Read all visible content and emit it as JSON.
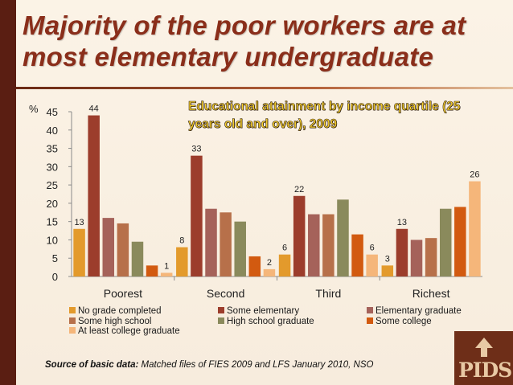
{
  "slide": {
    "title": "Majority of the poor workers are at most elementary undergraduate",
    "source_label": "Source of basic data:",
    "source_text": "Matched files of FIES 2009 and LFS  January 2010, NSO",
    "logo_text": "PIDS"
  },
  "chart_data": {
    "type": "bar",
    "title": "Educational attainment by income quartile (25 years old and over),  2009",
    "ylabel": "%",
    "ylim": [
      0,
      45
    ],
    "yticks": [
      0,
      5,
      10,
      15,
      20,
      25,
      30,
      35,
      40,
      45
    ],
    "categories": [
      "Poorest",
      "Second",
      "Third",
      "Richest"
    ],
    "series": [
      {
        "name": "No grade completed",
        "color": "#e39a2c",
        "values": [
          13,
          8,
          6,
          3
        ],
        "labels": [
          "13",
          "8",
          "6",
          "3"
        ]
      },
      {
        "name": "Some elementary",
        "color": "#9c3d2c",
        "values": [
          44,
          33,
          22,
          13
        ],
        "labels": [
          "44",
          "33",
          "22",
          "13"
        ]
      },
      {
        "name": "Elementary graduate",
        "color": "#a5625a",
        "values": [
          16,
          18.5,
          17,
          10
        ],
        "labels": [
          "",
          "",
          "",
          ""
        ]
      },
      {
        "name": "Some high school",
        "color": "#b7704a",
        "values": [
          14.5,
          17.5,
          17,
          10.5
        ],
        "labels": [
          "",
          "",
          "",
          ""
        ]
      },
      {
        "name": "High school graduate",
        "color": "#8a8a5c",
        "values": [
          9.5,
          15,
          21,
          18.5
        ],
        "labels": [
          "",
          "",
          "",
          ""
        ]
      },
      {
        "name": "Some college",
        "color": "#d25a10",
        "values": [
          3,
          5.5,
          11.5,
          19
        ],
        "labels": [
          "",
          "",
          "",
          ""
        ]
      },
      {
        "name": "At least college graduate",
        "color": "#f5b67a",
        "values": [
          1,
          2,
          6,
          26
        ],
        "labels": [
          "1",
          "2",
          "6",
          "26"
        ]
      }
    ],
    "grid": false,
    "legend": "bottom"
  }
}
